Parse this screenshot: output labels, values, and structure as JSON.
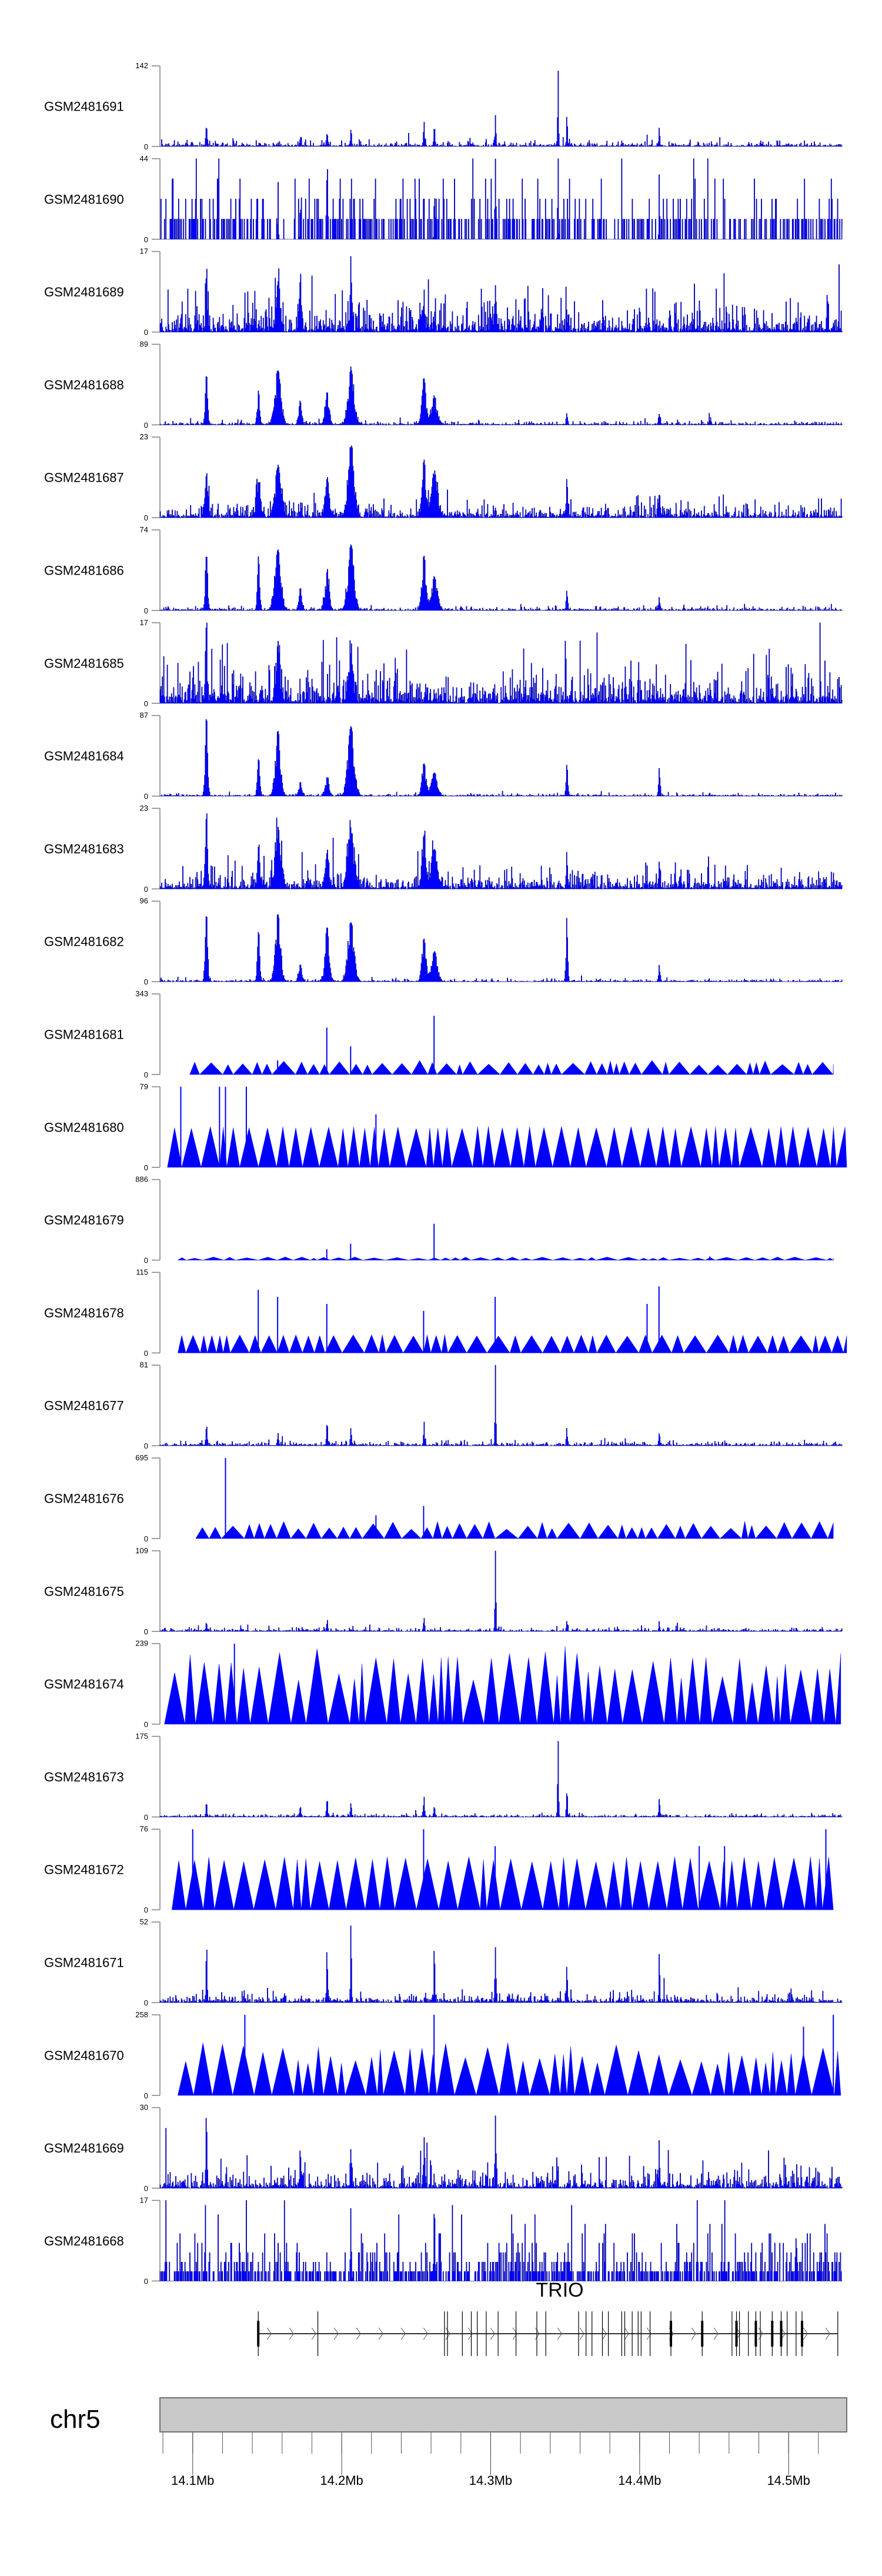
{
  "chart_data": {
    "type": "area",
    "title": "",
    "colors": {
      "fill": "#0000ff",
      "outline": "#00008b",
      "axis": "#808080",
      "ideogram": "#c8c8c8"
    },
    "tracks": [
      {
        "name": "GSM2481691",
        "ymax": 142,
        "style": "bars",
        "noise": 3,
        "peaks": [
          [
            14.109,
            40,
            0.0006
          ],
          [
            14.172,
            22,
            0.0006
          ],
          [
            14.19,
            25,
            0.0006
          ],
          [
            14.206,
            30,
            0.0006
          ],
          [
            14.255,
            40,
            0.0006
          ],
          [
            14.262,
            35,
            0.0006
          ],
          [
            14.303,
            45,
            0.0006
          ],
          [
            14.345,
            142,
            0.0005
          ],
          [
            14.351,
            60,
            0.0005
          ],
          [
            14.413,
            25,
            0.0006
          ]
        ]
      },
      {
        "name": "GSM2481690",
        "ymax": 44,
        "style": "bars",
        "noise": 9,
        "quantum": 11,
        "peaks": [
          [
            14.157,
            33,
            0.0004
          ],
          [
            14.172,
            33,
            0.0004
          ],
          [
            14.19,
            44,
            0.0004
          ],
          [
            14.262,
            33,
            0.0004
          ],
          [
            14.303,
            33,
            0.0004
          ],
          [
            14.345,
            44,
            0.0004
          ],
          [
            14.413,
            33,
            0.0004
          ]
        ]
      },
      {
        "name": "GSM2481689",
        "ymax": 17,
        "style": "bars",
        "noise": 2.2,
        "peaks": [
          [
            14.109,
            12,
            0.0008
          ],
          [
            14.157,
            9,
            0.002
          ],
          [
            14.172,
            8,
            0.001
          ],
          [
            14.206,
            16,
            0.0008
          ],
          [
            14.255,
            9,
            0.001
          ],
          [
            14.303,
            8,
            0.001
          ]
        ]
      },
      {
        "name": "GSM2481688",
        "ymax": 89,
        "style": "bars",
        "noise": 1.2,
        "peaks": [
          [
            14.109,
            55,
            0.0012
          ],
          [
            14.144,
            35,
            0.0012
          ],
          [
            14.157,
            60,
            0.003
          ],
          [
            14.172,
            25,
            0.0015
          ],
          [
            14.19,
            35,
            0.002
          ],
          [
            14.206,
            60,
            0.003
          ],
          [
            14.255,
            50,
            0.002
          ],
          [
            14.262,
            30,
            0.003
          ],
          [
            14.351,
            12,
            0.0008
          ],
          [
            14.413,
            12,
            0.0008
          ],
          [
            14.447,
            4,
            0.001
          ]
        ]
      },
      {
        "name": "GSM2481687",
        "ymax": 23,
        "style": "bars",
        "noise": 1.5,
        "peaks": [
          [
            14.109,
            12,
            0.0015
          ],
          [
            14.144,
            10,
            0.002
          ],
          [
            14.157,
            14,
            0.003
          ],
          [
            14.19,
            11,
            0.002
          ],
          [
            14.206,
            20,
            0.003
          ],
          [
            14.255,
            16,
            0.002
          ],
          [
            14.262,
            12,
            0.003
          ],
          [
            14.351,
            6,
            0.001
          ],
          [
            14.413,
            6,
            0.001
          ]
        ]
      },
      {
        "name": "GSM2481686",
        "ymax": 74,
        "style": "bars",
        "noise": 1,
        "peaks": [
          [
            14.109,
            50,
            0.0012
          ],
          [
            14.144,
            45,
            0.0012
          ],
          [
            14.157,
            55,
            0.003
          ],
          [
            14.172,
            20,
            0.0015
          ],
          [
            14.19,
            35,
            0.002
          ],
          [
            14.206,
            60,
            0.003
          ],
          [
            14.255,
            50,
            0.002
          ],
          [
            14.262,
            30,
            0.003
          ],
          [
            14.351,
            18,
            0.0008
          ],
          [
            14.413,
            12,
            0.0008
          ]
        ]
      },
      {
        "name": "GSM2481685",
        "ymax": 17,
        "style": "bars",
        "noise": 2.6,
        "peaks": [
          [
            14.109,
            17,
            0.0008
          ],
          [
            14.157,
            10,
            0.002
          ],
          [
            14.206,
            10,
            0.002
          ]
        ]
      },
      {
        "name": "GSM2481684",
        "ymax": 87,
        "style": "bars",
        "noise": 0.8,
        "peaks": [
          [
            14.109,
            85,
            0.0012
          ],
          [
            14.144,
            40,
            0.0012
          ],
          [
            14.157,
            70,
            0.0025
          ],
          [
            14.172,
            15,
            0.0015
          ],
          [
            14.19,
            20,
            0.002
          ],
          [
            14.206,
            75,
            0.003
          ],
          [
            14.255,
            35,
            0.002
          ],
          [
            14.262,
            25,
            0.003
          ],
          [
            14.351,
            35,
            0.0008
          ],
          [
            14.413,
            30,
            0.0008
          ]
        ]
      },
      {
        "name": "GSM2481683",
        "ymax": 23,
        "style": "bars",
        "noise": 1.8,
        "peaks": [
          [
            14.109,
            20,
            0.0012
          ],
          [
            14.144,
            12,
            0.0012
          ],
          [
            14.157,
            14,
            0.003
          ],
          [
            14.19,
            10,
            0.002
          ],
          [
            14.206,
            16,
            0.003
          ],
          [
            14.255,
            14,
            0.002
          ],
          [
            14.262,
            11,
            0.003
          ],
          [
            14.351,
            9,
            0.0008
          ],
          [
            14.413,
            7,
            0.0008
          ]
        ]
      },
      {
        "name": "GSM2481682",
        "ymax": 96,
        "style": "bars",
        "noise": 1,
        "peaks": [
          [
            14.109,
            80,
            0.0012
          ],
          [
            14.144,
            60,
            0.0012
          ],
          [
            14.157,
            80,
            0.0025
          ],
          [
            14.172,
            20,
            0.0015
          ],
          [
            14.19,
            65,
            0.002
          ],
          [
            14.206,
            70,
            0.003
          ],
          [
            14.255,
            50,
            0.002
          ],
          [
            14.262,
            35,
            0.003
          ],
          [
            14.351,
            80,
            0.0008
          ],
          [
            14.413,
            20,
            0.0008
          ]
        ]
      },
      {
        "name": "GSM2481681",
        "ymax": 343,
        "style": "triangles",
        "range": [
          40,
          60
        ],
        "start": 14.098,
        "end": 14.53,
        "spikes": [
          [
            14.157,
            60
          ],
          [
            14.19,
            200
          ],
          [
            14.206,
            120
          ],
          [
            14.262,
            250
          ]
        ]
      },
      {
        "name": "GSM2481680",
        "ymax": 79,
        "style": "triangles",
        "range": [
          38,
          40
        ],
        "start": 14.083,
        "end": 14.539,
        "spikes": [
          [
            14.092,
            79
          ],
          [
            14.118,
            79
          ],
          [
            14.122,
            79
          ],
          [
            14.136,
            79
          ],
          [
            14.223,
            52
          ]
        ]
      },
      {
        "name": "GSM2481679",
        "ymax": 886,
        "style": "triangles",
        "range": [
          20,
          35
        ],
        "start": 14.09,
        "end": 14.53,
        "spikes": [
          [
            14.19,
            120
          ],
          [
            14.206,
            180
          ],
          [
            14.262,
            400
          ],
          [
            14.447,
            40
          ]
        ]
      },
      {
        "name": "GSM2481678",
        "ymax": 115,
        "style": "triangles",
        "range": [
          24,
          26
        ],
        "start": 14.09,
        "end": 14.539,
        "spikes": [
          [
            14.144,
            90
          ],
          [
            14.157,
            80
          ],
          [
            14.19,
            70
          ],
          [
            14.255,
            60
          ],
          [
            14.303,
            80
          ],
          [
            14.413,
            95
          ],
          [
            14.405,
            70
          ]
        ]
      },
      {
        "name": "GSM2481677",
        "ymax": 81,
        "style": "bars",
        "noise": 1.5,
        "peaks": [
          [
            14.109,
            20,
            0.0006
          ],
          [
            14.157,
            12,
            0.0006
          ],
          [
            14.19,
            28,
            0.0006
          ],
          [
            14.206,
            18,
            0.0006
          ],
          [
            14.255,
            22,
            0.0006
          ],
          [
            14.303,
            81,
            0.0005
          ],
          [
            14.351,
            18,
            0.0006
          ],
          [
            14.413,
            12,
            0.0006
          ]
        ]
      },
      {
        "name": "GSM2481676",
        "ymax": 695,
        "style": "triangles",
        "range": [
          80,
          150
        ],
        "start": 14.102,
        "end": 14.53,
        "spikes": [
          [
            14.122,
            695
          ],
          [
            14.223,
            200
          ],
          [
            14.255,
            280
          ]
        ]
      },
      {
        "name": "GSM2481675",
        "ymax": 109,
        "style": "bars",
        "noise": 1.5,
        "peaks": [
          [
            14.109,
            15,
            0.0006
          ],
          [
            14.19,
            20,
            0.0006
          ],
          [
            14.255,
            18,
            0.0006
          ],
          [
            14.303,
            109,
            0.0005
          ],
          [
            14.351,
            15,
            0.0006
          ],
          [
            14.413,
            12,
            0.0006
          ]
        ]
      },
      {
        "name": "GSM2481674",
        "ymax": 239,
        "style": "triangles",
        "range": [
          120,
          239
        ],
        "start": 14.081,
        "end": 14.535,
        "spikes": [
          [
            14.128,
            239
          ]
        ]
      },
      {
        "name": "GSM2481673",
        "ymax": 175,
        "style": "bars",
        "noise": 2,
        "peaks": [
          [
            14.109,
            30,
            0.0006
          ],
          [
            14.172,
            25,
            0.0006
          ],
          [
            14.19,
            50,
            0.0006
          ],
          [
            14.206,
            30,
            0.0006
          ],
          [
            14.255,
            45,
            0.0006
          ],
          [
            14.262,
            30,
            0.0006
          ],
          [
            14.345,
            175,
            0.0005
          ],
          [
            14.351,
            60,
            0.0005
          ],
          [
            14.413,
            40,
            0.0006
          ]
        ]
      },
      {
        "name": "GSM2481672",
        "ymax": 76,
        "style": "triangles",
        "range": [
          45,
          50
        ],
        "start": 14.086,
        "end": 14.53,
        "spikes": [
          [
            14.1,
            76
          ],
          [
            14.255,
            76
          ],
          [
            14.303,
            60
          ],
          [
            14.44,
            60
          ],
          [
            14.457,
            60
          ],
          [
            14.525,
            76
          ]
        ]
      },
      {
        "name": "GSM2481671",
        "ymax": 52,
        "style": "bars",
        "noise": 2,
        "peaks": [
          [
            14.109,
            45,
            0.0005
          ],
          [
            14.19,
            30,
            0.0006
          ],
          [
            14.206,
            52,
            0.0005
          ],
          [
            14.262,
            40,
            0.0005
          ],
          [
            14.303,
            35,
            0.0005
          ],
          [
            14.351,
            25,
            0.0006
          ],
          [
            14.413,
            32,
            0.0005
          ]
        ]
      },
      {
        "name": "GSM2481670",
        "ymax": 258,
        "style": "triangles",
        "range": [
          100,
          170
        ],
        "start": 14.09,
        "end": 14.535,
        "spikes": [
          [
            14.135,
            258
          ],
          [
            14.262,
            258
          ],
          [
            14.51,
            220
          ],
          [
            14.53,
            258
          ]
        ]
      },
      {
        "name": "GSM2481669",
        "ymax": 30,
        "style": "bars",
        "noise": 2.2,
        "peaks": [
          [
            14.109,
            27,
            0.0005
          ],
          [
            14.172,
            15,
            0.0006
          ],
          [
            14.206,
            15,
            0.0006
          ],
          [
            14.255,
            18,
            0.0006
          ],
          [
            14.303,
            27,
            0.0005
          ],
          [
            14.413,
            18,
            0.0005
          ]
        ]
      },
      {
        "name": "GSM2481668",
        "ymax": 17,
        "style": "bars",
        "noise": 3,
        "quantum": 2,
        "peaks": [
          [
            14.206,
            12,
            0.0005
          ],
          [
            14.262,
            15,
            0.0005
          ],
          [
            14.505,
            14,
            0.0005
          ]
        ]
      }
    ],
    "gene": {
      "name": "TRIO",
      "start": 14.144,
      "end": 14.533,
      "strand": "+",
      "exons": [
        14.144,
        14.184,
        14.269,
        14.271,
        14.281,
        14.287,
        14.291,
        14.297,
        14.305,
        14.317,
        14.331,
        14.337,
        14.359,
        14.364,
        14.368,
        14.375,
        14.379,
        14.388,
        14.39,
        14.395,
        14.399,
        14.401,
        14.407,
        14.421,
        14.442,
        14.462,
        14.465,
        14.467,
        14.473,
        14.478,
        14.481,
        14.489,
        14.495,
        14.499,
        14.505,
        14.509,
        14.533
      ],
      "thick_exons": [
        14.144,
        14.421,
        14.442,
        14.465,
        14.478,
        14.489,
        14.495,
        14.509
      ]
    },
    "axis": {
      "chromosome": "chr5",
      "range_mb": [
        14.078,
        14.539
      ],
      "minor_step_mb": 0.02,
      "major_ticks": [
        14.1,
        14.2,
        14.3,
        14.4,
        14.5
      ],
      "tick_labels": [
        "14.1Mb",
        "14.2Mb",
        "14.3Mb",
        "14.4Mb",
        "14.5Mb"
      ]
    },
    "y_zero_label": "0"
  }
}
